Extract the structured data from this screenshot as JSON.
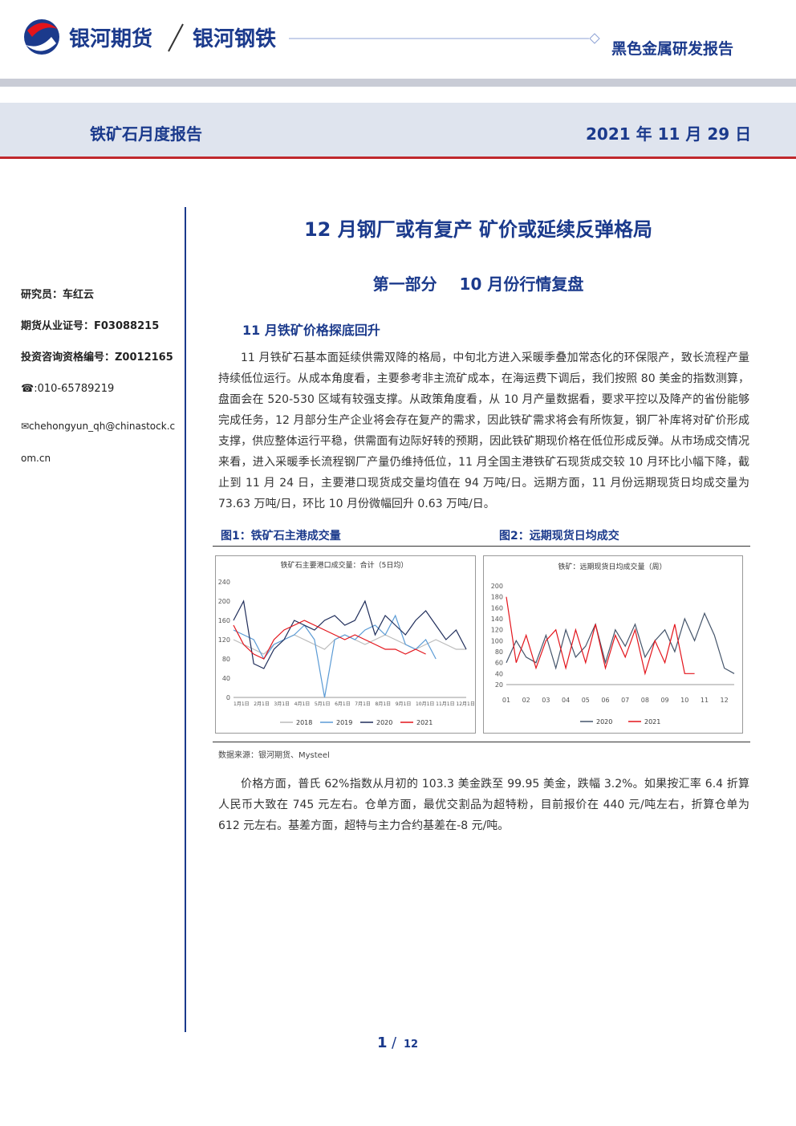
{
  "header": {
    "brand": "银河期货",
    "brand2": "银河钢铁",
    "report_type": "黑色金属研发报告",
    "report_name": "铁矿石月度报告",
    "date": "2021 年 11 月 29 日"
  },
  "sidebar": [
    "研究员：车红云",
    "期货从业证号：F03088215",
    "投资咨询资格编号：Z0012165",
    "☎:010-65789219",
    "✉chehongyun_qh@chinastock.com.cn"
  ],
  "title": "12 月钢厂或有复产  矿价或延续反弹格局",
  "section": "第一部分    10 月份行情复盘",
  "subsection": "11 月铁矿价格探底回升",
  "paragraphs": [
    "11 月铁矿石基本面延续供需双降的格局，中旬北方进入采暖季叠加常态化的环保限产，致长流程产量持续低位运行。从成本角度看，主要参考非主流矿成本，在海运费下调后，我们按照 80 美金的指数测算，盘面会在 520-530 区域有较强支撑。从政策角度看，从 10 月产量数据看，要求平控以及降产的省份能够完成任务，12 月部分生产企业将会存在复产的需求，因此铁矿需求将会有所恢复，钢厂补库将对矿价形成支撑，供应整体运行平稳，供需面有边际好转的预期，因此铁矿期现价格在低位形成反弹。从市场成交情况来看，进入采暖季长流程钢厂产量仍维持低位，11 月全国主港铁矿石现货成交较 10 月环比小幅下降，截止到 11 月 24 日，主要港口现货成交量均值在 94 万吨/日。远期方面，11 月份远期现货日均成交量为 73.63 万吨/日，环比 10 月份微幅回升 0.63 万吨/日。",
    "价格方面，普氏 62%指数从月初的 103.3 美金跌至 99.95 美金，跌幅 3.2%。如果按汇率 6.4 折算人民币大致在 745 元左右。仓单方面，最优交割品为超特粉，目前报价在 440 元/吨左右，折算仓单为 612 元左右。基差方面，超特与主力合约基差在-8 元/吨。"
  ],
  "figure_captions": [
    "图1：铁矿石主港成交量",
    "图2：远期现货日均成交"
  ],
  "source": "数据来源：银河期货、Mysteel",
  "page": {
    "current": 1,
    "total": 12
  },
  "chart_data": [
    {
      "type": "line",
      "title": "铁矿石主要港口成交量：合计（5日均）",
      "categories": [
        "1月1日",
        null,
        "2月1日",
        null,
        "3月1日",
        null,
        "4月1日",
        null,
        "5月1日",
        null,
        "6月1日",
        null,
        "7月1日",
        null,
        "8月1日",
        null,
        "9月1日",
        null,
        "10月1日",
        null,
        "11月1日",
        null,
        "12月1日",
        null
      ],
      "series": [
        {
          "name": "2018",
          "color": "#bbbbbb",
          "values": [
            120,
            110,
            100,
            90,
            110,
            120,
            130,
            120,
            110,
            100,
            120,
            130,
            120,
            110,
            120,
            130,
            120,
            110,
            100,
            110,
            120,
            110,
            100,
            100
          ]
        },
        {
          "name": "2019",
          "color": "#5b9bd5",
          "values": [
            140,
            130,
            120,
            80,
            110,
            120,
            130,
            150,
            120,
            0,
            120,
            130,
            120,
            140,
            150,
            130,
            170,
            110,
            100,
            120,
            80,
            null,
            null,
            null
          ]
        },
        {
          "name": "2020",
          "color": "#1f2d5a",
          "values": [
            160,
            200,
            70,
            60,
            100,
            120,
            160,
            150,
            140,
            160,
            170,
            150,
            160,
            200,
            130,
            170,
            150,
            130,
            160,
            180,
            150,
            120,
            140,
            100
          ]
        },
        {
          "name": "2021",
          "color": "#e3141b",
          "values": [
            150,
            110,
            90,
            80,
            120,
            140,
            150,
            160,
            150,
            140,
            130,
            120,
            130,
            120,
            110,
            100,
            100,
            90,
            100,
            90,
            null,
            null,
            null,
            null
          ]
        }
      ],
      "ylim": [
        0,
        240
      ],
      "yticks": [
        0,
        40,
        80,
        120,
        160,
        200,
        240
      ]
    },
    {
      "type": "line",
      "title": "铁矿：远期现货日均成交量（周）",
      "categories": [
        "01",
        null,
        "02",
        null,
        "03",
        null,
        "04",
        null,
        "05",
        null,
        "06",
        null,
        "07",
        null,
        "08",
        null,
        "09",
        null,
        "10",
        null,
        "11",
        null,
        "12",
        null
      ],
      "series": [
        {
          "name": "2020",
          "color": "#44546a",
          "values": [
            60,
            100,
            70,
            60,
            110,
            50,
            120,
            70,
            90,
            130,
            60,
            120,
            90,
            130,
            70,
            100,
            120,
            80,
            140,
            100,
            150,
            110,
            50,
            40
          ]
        },
        {
          "name": "2021",
          "color": "#e3141b",
          "values": [
            180,
            60,
            110,
            50,
            100,
            120,
            50,
            120,
            60,
            130,
            50,
            110,
            70,
            120,
            40,
            100,
            60,
            130,
            40,
            40,
            null,
            null,
            null,
            null
          ]
        }
      ],
      "ylim": [
        20,
        200
      ],
      "yticks": [
        20,
        40,
        60,
        80,
        100,
        120,
        140,
        160,
        180,
        200
      ]
    }
  ]
}
